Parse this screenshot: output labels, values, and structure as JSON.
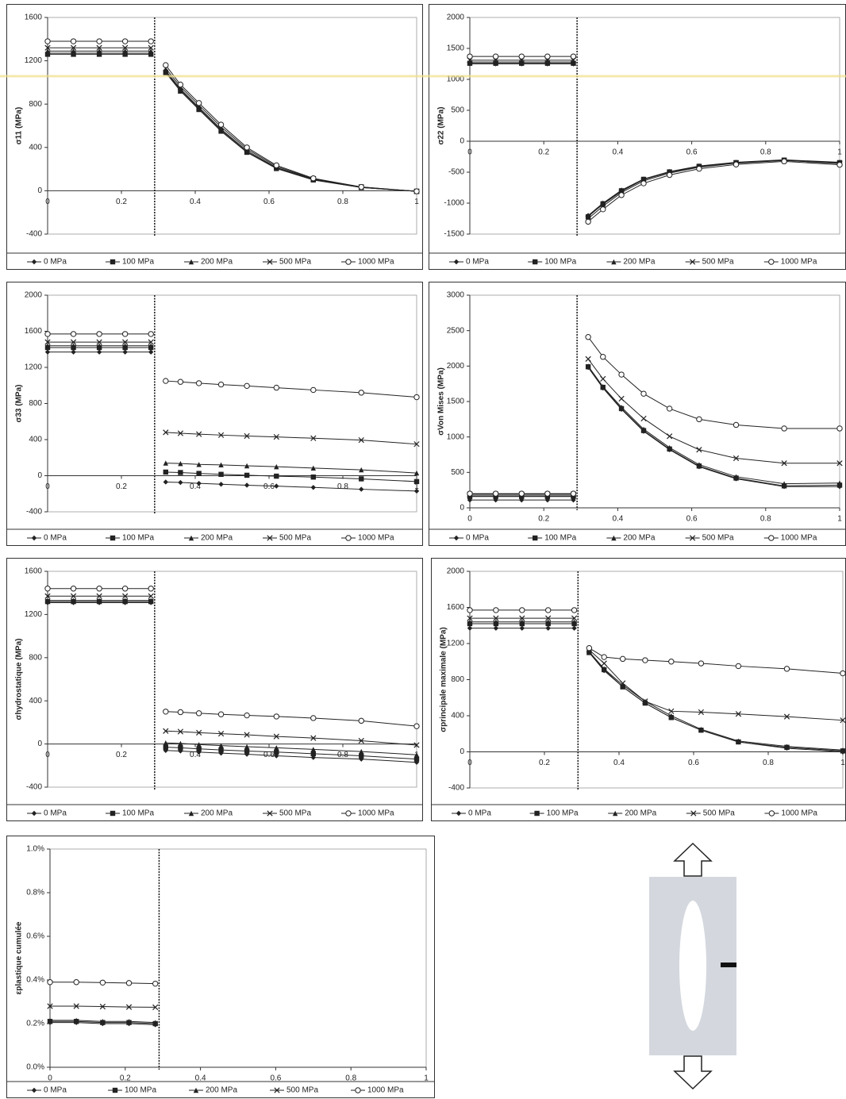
{
  "chart_data": [
    {
      "type": "line",
      "ylabel": "σ11 (MPa)",
      "x": [
        0,
        0.07,
        0.14,
        0.21,
        0.28,
        0.3,
        0.32,
        0.36,
        0.41,
        0.47,
        0.54,
        0.62,
        0.72,
        0.85,
        1.0
      ],
      "xlim": [
        0,
        1
      ],
      "xticks": [
        0,
        0.2,
        0.4,
        0.6,
        0.8,
        1
      ],
      "ylim": [
        -400,
        1600
      ],
      "yticks": [
        -400,
        0,
        400,
        800,
        1200,
        1600
      ],
      "series": [
        {
          "name": "0 MPa",
          "color": "#222222",
          "marker": "diamond",
          "values": [
            1270,
            1270,
            1270,
            1270,
            1270,
            null,
            1100,
            930,
            760,
            560,
            360,
            210,
            100,
            30,
            -5
          ]
        },
        {
          "name": "100 MPa",
          "color": "#222222",
          "marker": "square",
          "values": [
            1260,
            1260,
            1260,
            1260,
            1260,
            null,
            1090,
            920,
            750,
            550,
            355,
            205,
            100,
            30,
            -5
          ]
        },
        {
          "name": "200 MPa",
          "color": "#222222",
          "marker": "triangle",
          "values": [
            1290,
            1290,
            1290,
            1290,
            1290,
            null,
            1110,
            940,
            770,
            570,
            370,
            215,
            105,
            30,
            -5
          ]
        },
        {
          "name": "500 MPa",
          "color": "#222222",
          "marker": "cross",
          "values": [
            1320,
            1320,
            1320,
            1320,
            1320,
            null,
            1130,
            960,
            790,
            590,
            385,
            225,
            110,
            35,
            -5
          ]
        },
        {
          "name": "1000 MPa",
          "color": "#222222",
          "marker": "circle",
          "values": [
            1380,
            1380,
            1380,
            1380,
            1380,
            null,
            1160,
            980,
            810,
            610,
            400,
            235,
            115,
            35,
            -5
          ]
        }
      ]
    },
    {
      "type": "line",
      "ylabel": "σ22 (MPa)",
      "x": [
        0,
        0.07,
        0.14,
        0.21,
        0.28,
        0.3,
        0.32,
        0.36,
        0.41,
        0.47,
        0.54,
        0.62,
        0.72,
        0.85,
        1.0
      ],
      "xlim": [
        0,
        1
      ],
      "xticks": [
        0,
        0.2,
        0.4,
        0.6,
        0.8,
        1
      ],
      "ylim": [
        -1500,
        2000
      ],
      "yticks": [
        -1500,
        -1000,
        -500,
        0,
        500,
        1000,
        1500,
        2000
      ],
      "series": [
        {
          "name": "0 MPa",
          "color": "#222222",
          "marker": "diamond",
          "values": [
            1250,
            1250,
            1250,
            1250,
            1250,
            null,
            -1200,
            -1000,
            -790,
            -610,
            -490,
            -400,
            -340,
            -300,
            -340
          ]
        },
        {
          "name": "100 MPa",
          "color": "#222222",
          "marker": "square",
          "values": [
            1260,
            1260,
            1260,
            1260,
            1260,
            null,
            -1220,
            -1010,
            -800,
            -615,
            -495,
            -405,
            -345,
            -305,
            -345
          ]
        },
        {
          "name": "200 MPa",
          "color": "#222222",
          "marker": "triangle",
          "values": [
            1280,
            1280,
            1280,
            1280,
            1280,
            null,
            -1210,
            -1020,
            -810,
            -620,
            -500,
            -410,
            -350,
            -310,
            -350
          ]
        },
        {
          "name": "500 MPa",
          "color": "#222222",
          "marker": "cross",
          "values": [
            1310,
            1310,
            1310,
            1310,
            1310,
            null,
            -1250,
            -1050,
            -830,
            -640,
            -515,
            -420,
            -355,
            -310,
            -360
          ]
        },
        {
          "name": "1000 MPa",
          "color": "#222222",
          "marker": "circle",
          "values": [
            1370,
            1370,
            1370,
            1370,
            1370,
            null,
            -1300,
            -1100,
            -870,
            -680,
            -545,
            -445,
            -375,
            -325,
            -380
          ]
        }
      ]
    },
    {
      "type": "line",
      "ylabel": "σ33 (MPa)",
      "x": [
        0,
        0.07,
        0.14,
        0.21,
        0.28,
        0.3,
        0.32,
        0.36,
        0.41,
        0.47,
        0.54,
        0.62,
        0.72,
        0.85,
        1.0
      ],
      "xlim": [
        0,
        1
      ],
      "xticks": [
        0,
        0.2,
        0.4,
        0.6,
        0.8,
        1
      ],
      "ylim": [
        -400,
        2000
      ],
      "yticks": [
        -400,
        0,
        400,
        800,
        1200,
        1600,
        2000
      ],
      "series": [
        {
          "name": "0 MPa",
          "color": "#222222",
          "marker": "diamond",
          "values": [
            1370,
            1370,
            1370,
            1370,
            1370,
            null,
            -70,
            -75,
            -85,
            -95,
            -105,
            -115,
            -130,
            -150,
            -170
          ]
        },
        {
          "name": "100 MPa",
          "color": "#222222",
          "marker": "square",
          "values": [
            1420,
            1420,
            1420,
            1420,
            1420,
            null,
            40,
            35,
            25,
            15,
            5,
            -5,
            -15,
            -35,
            -65
          ]
        },
        {
          "name": "200 MPa",
          "color": "#222222",
          "marker": "triangle",
          "values": [
            1440,
            1440,
            1440,
            1440,
            1440,
            null,
            140,
            135,
            125,
            120,
            110,
            100,
            85,
            65,
            30
          ]
        },
        {
          "name": "500 MPa",
          "color": "#222222",
          "marker": "cross",
          "values": [
            1480,
            1480,
            1480,
            1480,
            1480,
            null,
            480,
            470,
            460,
            450,
            440,
            430,
            415,
            395,
            350
          ]
        },
        {
          "name": "1000 MPa",
          "color": "#222222",
          "marker": "circle",
          "values": [
            1570,
            1570,
            1570,
            1570,
            1570,
            null,
            1050,
            1040,
            1025,
            1010,
            995,
            975,
            950,
            920,
            870
          ]
        }
      ]
    },
    {
      "type": "line",
      "ylabel": "σVon Mises (MPa)",
      "x": [
        0,
        0.07,
        0.14,
        0.21,
        0.28,
        0.3,
        0.32,
        0.36,
        0.41,
        0.47,
        0.54,
        0.62,
        0.72,
        0.85,
        1.0
      ],
      "xlim": [
        0,
        1
      ],
      "xticks": [
        0,
        0.2,
        0.4,
        0.6,
        0.8,
        1
      ],
      "ylim": [
        0,
        3000
      ],
      "yticks": [
        0,
        500,
        1000,
        1500,
        2000,
        2500,
        3000
      ],
      "series": [
        {
          "name": "0 MPa",
          "color": "#222222",
          "marker": "diamond",
          "values": [
            110,
            110,
            110,
            110,
            110,
            null,
            1980,
            1690,
            1390,
            1080,
            820,
            580,
            410,
            300,
            300
          ]
        },
        {
          "name": "100 MPa",
          "color": "#222222",
          "marker": "square",
          "values": [
            160,
            160,
            160,
            160,
            160,
            null,
            1990,
            1700,
            1400,
            1090,
            830,
            590,
            420,
            310,
            320
          ]
        },
        {
          "name": "200 MPa",
          "color": "#222222",
          "marker": "triangle",
          "values": [
            170,
            170,
            170,
            170,
            170,
            null,
            2000,
            1710,
            1420,
            1110,
            850,
            610,
            440,
            340,
            350
          ]
        },
        {
          "name": "500 MPa",
          "color": "#222222",
          "marker": "cross",
          "values": [
            190,
            190,
            190,
            190,
            190,
            null,
            2100,
            1820,
            1540,
            1260,
            1010,
            820,
            700,
            630,
            630
          ]
        },
        {
          "name": "1000 MPa",
          "color": "#222222",
          "marker": "circle",
          "values": [
            200,
            200,
            200,
            200,
            200,
            null,
            2410,
            2130,
            1880,
            1610,
            1400,
            1250,
            1170,
            1120,
            1120
          ]
        }
      ]
    },
    {
      "type": "line",
      "ylabel": "σhydrostatique (MPa)",
      "x": [
        0,
        0.07,
        0.14,
        0.21,
        0.28,
        0.3,
        0.32,
        0.36,
        0.41,
        0.47,
        0.54,
        0.62,
        0.72,
        0.85,
        1.0
      ],
      "xlim": [
        0,
        1
      ],
      "xticks": [
        0,
        0.2,
        0.4,
        0.6,
        0.8,
        1
      ],
      "ylim": [
        -400,
        1600
      ],
      "yticks": [
        -400,
        0,
        400,
        800,
        1200,
        1600
      ],
      "series": [
        {
          "name": "0 MPa",
          "color": "#222222",
          "marker": "diamond",
          "values": [
            1310,
            1310,
            1310,
            1310,
            1310,
            null,
            -60,
            -65,
            -75,
            -85,
            -95,
            -110,
            -125,
            -140,
            -170
          ]
        },
        {
          "name": "100 MPa",
          "color": "#222222",
          "marker": "square",
          "values": [
            1320,
            1320,
            1320,
            1320,
            1320,
            null,
            -30,
            -35,
            -45,
            -55,
            -65,
            -75,
            -90,
            -110,
            -140
          ]
        },
        {
          "name": "200 MPa",
          "color": "#222222",
          "marker": "triangle",
          "values": [
            1330,
            1330,
            1330,
            1330,
            1330,
            null,
            10,
            5,
            -5,
            -15,
            -25,
            -35,
            -50,
            -70,
            -100
          ]
        },
        {
          "name": "500 MPa",
          "color": "#222222",
          "marker": "cross",
          "values": [
            1370,
            1370,
            1370,
            1370,
            1370,
            null,
            120,
            115,
            105,
            95,
            85,
            70,
            55,
            30,
            -10
          ]
        },
        {
          "name": "1000 MPa",
          "color": "#222222",
          "marker": "circle",
          "values": [
            1440,
            1440,
            1440,
            1440,
            1440,
            null,
            300,
            295,
            285,
            275,
            265,
            255,
            240,
            215,
            165
          ]
        }
      ]
    },
    {
      "type": "line",
      "ylabel": "σprincipale maximale (MPa)",
      "x": [
        0,
        0.07,
        0.14,
        0.21,
        0.28,
        0.3,
        0.32,
        0.36,
        0.41,
        0.47,
        0.54,
        0.62,
        0.72,
        0.85,
        1.0
      ],
      "xlim": [
        0,
        1
      ],
      "xticks": [
        0,
        0.2,
        0.4,
        0.6,
        0.8,
        1
      ],
      "ylim": [
        -400,
        2000
      ],
      "yticks": [
        -400,
        0,
        400,
        800,
        1200,
        1600,
        2000
      ],
      "series": [
        {
          "name": "0 MPa",
          "color": "#222222",
          "marker": "diamond",
          "values": [
            1370,
            1370,
            1370,
            1370,
            1370,
            null,
            1100,
            900,
            720,
            540,
            380,
            240,
            110,
            40,
            0
          ]
        },
        {
          "name": "100 MPa",
          "color": "#222222",
          "marker": "square",
          "values": [
            1420,
            1420,
            1420,
            1420,
            1420,
            null,
            1100,
            910,
            720,
            540,
            380,
            240,
            110,
            50,
            10
          ]
        },
        {
          "name": "200 MPa",
          "color": "#222222",
          "marker": "triangle",
          "values": [
            1440,
            1440,
            1440,
            1440,
            1440,
            null,
            1110,
            920,
            740,
            560,
            400,
            250,
            120,
            60,
            20
          ]
        },
        {
          "name": "500 MPa",
          "color": "#222222",
          "marker": "cross",
          "values": [
            1480,
            1480,
            1480,
            1480,
            1480,
            null,
            1130,
            980,
            760,
            560,
            450,
            440,
            420,
            390,
            350
          ]
        },
        {
          "name": "1000 MPa",
          "color": "#222222",
          "marker": "circle",
          "values": [
            1570,
            1570,
            1570,
            1570,
            1570,
            null,
            1150,
            1050,
            1030,
            1015,
            1000,
            980,
            950,
            920,
            870
          ]
        }
      ]
    },
    {
      "type": "line",
      "ylabel": "εplastique cumulée",
      "x": [
        0,
        0.07,
        0.14,
        0.21,
        0.28
      ],
      "xlim": [
        0,
        1
      ],
      "xticks": [
        0,
        0.2,
        0.4,
        0.6,
        0.8,
        1
      ],
      "ylim": [
        0,
        1
      ],
      "yticks": [
        {
          "value": 0,
          "label": "0.0%"
        },
        {
          "value": 0.2,
          "label": "0.2%"
        },
        {
          "value": 0.4,
          "label": "0.4%"
        },
        {
          "value": 0.6,
          "label": "0.6%"
        },
        {
          "value": 0.8,
          "label": "0.8%"
        },
        {
          "value": 1,
          "label": "1.0%"
        }
      ],
      "series": [
        {
          "name": "0 MPa",
          "color": "#222222",
          "marker": "diamond",
          "values": [
            0.205,
            0.205,
            0.2,
            0.2,
            0.195
          ]
        },
        {
          "name": "100 MPa",
          "color": "#222222",
          "marker": "square",
          "values": [
            0.21,
            0.21,
            0.205,
            0.205,
            0.2
          ]
        },
        {
          "name": "200 MPa",
          "color": "#222222",
          "marker": "triangle",
          "values": [
            0.215,
            0.215,
            0.21,
            0.21,
            0.205
          ]
        },
        {
          "name": "500 MPa",
          "color": "#222222",
          "marker": "cross",
          "values": [
            0.28,
            0.28,
            0.278,
            0.276,
            0.275
          ]
        },
        {
          "name": "1000 MPa",
          "color": "#222222",
          "marker": "circle",
          "values": [
            0.39,
            0.39,
            0.388,
            0.386,
            0.383
          ]
        }
      ]
    }
  ]
}
